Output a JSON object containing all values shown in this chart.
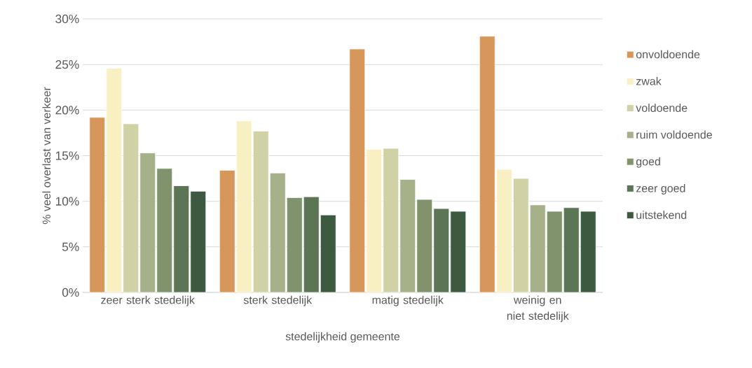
{
  "chart_data": {
    "type": "bar",
    "xlabel": "stedelijkheid gemeente",
    "ylabel": "% veel overlast van verkeer",
    "categories": [
      "zeer sterk stedelijk",
      "sterk stedelijk",
      "matig stedelijk",
      "weinig en niet stedelijk"
    ],
    "series": [
      {
        "name": "onvoldoende",
        "color": "#d7975b",
        "values": [
          19.2,
          13.4,
          26.7,
          28.1
        ]
      },
      {
        "name": "zwak",
        "color": "#f8f0c3",
        "values": [
          24.6,
          18.8,
          15.7,
          13.5
        ]
      },
      {
        "name": "voldoende",
        "color": "#d0d1a5",
        "values": [
          18.5,
          17.7,
          15.8,
          12.5
        ]
      },
      {
        "name": "ruim voldoende",
        "color": "#a6b189",
        "values": [
          15.3,
          13.1,
          12.4,
          9.6
        ]
      },
      {
        "name": "goed",
        "color": "#81936d",
        "values": [
          13.6,
          10.4,
          10.2,
          8.9
        ]
      },
      {
        "name": "zeer goed",
        "color": "#5c7555",
        "values": [
          11.7,
          10.5,
          9.2,
          9.3
        ]
      },
      {
        "name": "uitstekend",
        "color": "#3d5a41",
        "values": [
          11.1,
          8.5,
          8.9,
          8.9
        ]
      }
    ],
    "ylim": [
      0,
      30
    ],
    "yticks": [
      {
        "value": 0,
        "label": "0%"
      },
      {
        "value": 5,
        "label": "5%"
      },
      {
        "value": 10,
        "label": "10%"
      },
      {
        "value": 15,
        "label": "15%"
      },
      {
        "value": 20,
        "label": "20%"
      },
      {
        "value": 25,
        "label": "25%"
      },
      {
        "value": 30,
        "label": "30%"
      }
    ],
    "grid": "y",
    "legend": "right"
  }
}
